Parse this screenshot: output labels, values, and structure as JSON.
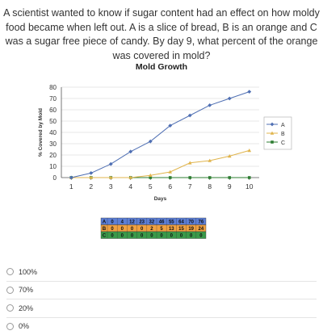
{
  "question": {
    "text": "A scientist wanted to know if sugar content had an effect on how moldy food became when left out.  A is a slice of bread, B is an orange and C was a sugar free piece of candy.  By day 9, what percent of the orange was covered in mold?"
  },
  "chart_data": {
    "type": "line",
    "title": "Mold Growth",
    "xlabel": "Days",
    "ylabel": "% Covered by Mold",
    "x": [
      1,
      2,
      3,
      4,
      5,
      6,
      7,
      8,
      9,
      10
    ],
    "xlim": [
      0.5,
      10.5
    ],
    "ylim": [
      0,
      80
    ],
    "yticks": [
      0,
      10,
      20,
      30,
      40,
      50,
      60,
      70,
      80
    ],
    "grid": true,
    "legend": "right",
    "series": [
      {
        "name": "A",
        "values": [
          0,
          4,
          12,
          23,
          32,
          46,
          55,
          64,
          70,
          76
        ],
        "color": "#4f6fb3",
        "marker": "diamond"
      },
      {
        "name": "B",
        "values": [
          0,
          0,
          0,
          0,
          2,
          5,
          13,
          15,
          19,
          24
        ],
        "color": "#e0b44c",
        "marker": "triangle"
      },
      {
        "name": "C",
        "values": [
          0,
          0,
          0,
          0,
          0,
          0,
          0,
          0,
          0,
          0
        ],
        "color": "#2e7d32",
        "marker": "square"
      }
    ],
    "table": {
      "rows": [
        {
          "label": "A",
          "values": [
            0,
            4,
            12,
            23,
            32,
            46,
            55,
            64,
            70,
            76
          ],
          "color": "#5b7ed6"
        },
        {
          "label": "B",
          "values": [
            0,
            0,
            0,
            0,
            2,
            5,
            13,
            15,
            19,
            24
          ],
          "color": "#f0a040"
        },
        {
          "label": "C",
          "values": [
            0,
            0,
            0,
            0,
            0,
            0,
            0,
            0,
            0,
            0
          ],
          "color": "#3a9a4a"
        }
      ]
    }
  },
  "options": [
    {
      "label": "100%"
    },
    {
      "label": "70%"
    },
    {
      "label": "20%"
    },
    {
      "label": "0%"
    }
  ]
}
